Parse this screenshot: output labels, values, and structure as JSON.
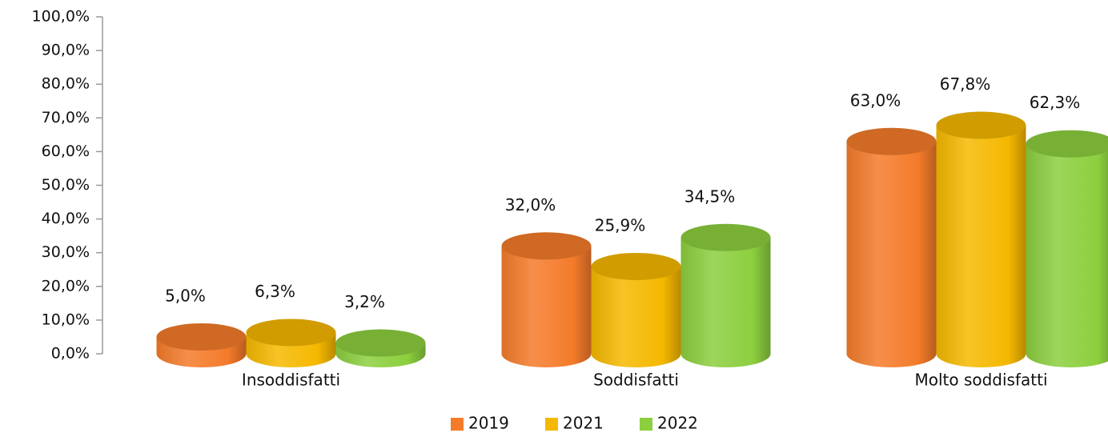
{
  "chart_data": {
    "type": "bar",
    "categories": [
      "Insoddisfatti",
      "Soddisfatti",
      "Molto soddisfatti"
    ],
    "series": [
      {
        "name": "2019",
        "color": "#f47b2a",
        "values": [
          5.0,
          32.0,
          63.0
        ],
        "value_labels": [
          "5,0%",
          "32,0%",
          "63,0%"
        ]
      },
      {
        "name": "2021",
        "color": "#f5b800",
        "values": [
          6.3,
          25.9,
          67.8
        ],
        "value_labels": [
          "6,3%",
          "25,9%",
          "67,8%"
        ]
      },
      {
        "name": "2022",
        "color": "#8ccf3e",
        "values": [
          3.2,
          34.5,
          62.3
        ],
        "value_labels": [
          "3,2%",
          "34,5%",
          "62,3%"
        ]
      }
    ],
    "ylim": [
      0,
      100
    ],
    "yticks": [
      {
        "value": 0,
        "label": "0,0%"
      },
      {
        "value": 10,
        "label": "10,0%"
      },
      {
        "value": 20,
        "label": "20,0%"
      },
      {
        "value": 30,
        "label": "30,0%"
      },
      {
        "value": 40,
        "label": "40,0%"
      },
      {
        "value": 50,
        "label": "50,0%"
      },
      {
        "value": 60,
        "label": "60,0%"
      },
      {
        "value": 70,
        "label": "70,0%"
      },
      {
        "value": 80,
        "label": "80,0%"
      },
      {
        "value": 90,
        "label": "90,0%"
      },
      {
        "value": 100,
        "label": "100,0%"
      }
    ],
    "legend": "bottom"
  }
}
